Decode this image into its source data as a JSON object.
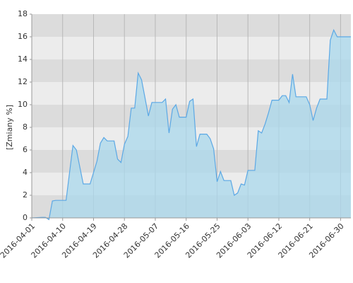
{
  "chart_data": {
    "type": "area",
    "y_label": "[Zmiany %]",
    "x": [
      "2016-04-01",
      "2016-04-04",
      "2016-04-05",
      "2016-04-06",
      "2016-04-07",
      "2016-04-08",
      "2016-04-11",
      "2016-04-13",
      "2016-04-14",
      "2016-04-16",
      "2016-04-18",
      "2016-04-20",
      "2016-04-21",
      "2016-04-22",
      "2016-04-23",
      "2016-04-25",
      "2016-04-26",
      "2016-04-27",
      "2016-04-28",
      "2016-04-29",
      "2016-04-30",
      "2016-05-01",
      "2016-05-02",
      "2016-05-03",
      "2016-05-04",
      "2016-05-05",
      "2016-05-06",
      "2016-05-09",
      "2016-05-10",
      "2016-05-11",
      "2016-05-12",
      "2016-05-13",
      "2016-05-14",
      "2016-05-16",
      "2016-05-17",
      "2016-05-18",
      "2016-05-19",
      "2016-05-20",
      "2016-05-22",
      "2016-05-23",
      "2016-05-24",
      "2016-05-25",
      "2016-05-26",
      "2016-05-27",
      "2016-05-29",
      "2016-05-30",
      "2016-05-31",
      "2016-06-01",
      "2016-06-02",
      "2016-06-03",
      "2016-06-05",
      "2016-06-06",
      "2016-06-07",
      "2016-06-08",
      "2016-06-09",
      "2016-06-10",
      "2016-06-12",
      "2016-06-13",
      "2016-06-14",
      "2016-06-15",
      "2016-06-16",
      "2016-06-17",
      "2016-06-20",
      "2016-06-21",
      "2016-06-22",
      "2016-06-23",
      "2016-06-24",
      "2016-06-26",
      "2016-06-27",
      "2016-06-28",
      "2016-06-29",
      "2016-07-02",
      "2016-07-03"
    ],
    "values": [
      0,
      0.05,
      0.05,
      -0.15,
      1.5,
      1.55,
      1.55,
      6.4,
      6.0,
      3.0,
      3.0,
      5.0,
      6.6,
      7.1,
      6.8,
      6.8,
      5.2,
      4.9,
      6.5,
      7.2,
      9.7,
      9.7,
      12.8,
      12.2,
      10.6,
      9.0,
      10.2,
      10.2,
      10.5,
      7.5,
      9.6,
      10.0,
      8.9,
      8.9,
      10.3,
      10.5,
      6.3,
      7.4,
      7.4,
      7.0,
      6.1,
      3.2,
      4.1,
      3.3,
      3.3,
      2.0,
      2.2,
      3.0,
      2.9,
      4.2,
      4.2,
      7.7,
      7.5,
      8.3,
      9.3,
      10.4,
      10.4,
      10.8,
      10.8,
      10.2,
      12.7,
      10.7,
      10.7,
      10.0,
      8.6,
      9.7,
      10.5,
      10.5,
      15.7,
      16.6,
      16.0,
      16.0,
      16.0
    ],
    "color": "#5ba8e5",
    "fill": "#a9d8ec",
    "xlim": [
      "2016-04-01",
      "2016-07-03"
    ],
    "xticks": [
      "2016-04-01",
      "2016-04-10",
      "2016-04-19",
      "2016-04-28",
      "2016-05-07",
      "2016-05-16",
      "2016-05-25",
      "2016-06-03",
      "2016-06-12",
      "2016-06-21",
      "2016-06-30"
    ],
    "ylim": [
      0,
      18
    ],
    "yticks": [
      0,
      2,
      4,
      6,
      8,
      10,
      12,
      14,
      16,
      18
    ],
    "grid": true
  }
}
